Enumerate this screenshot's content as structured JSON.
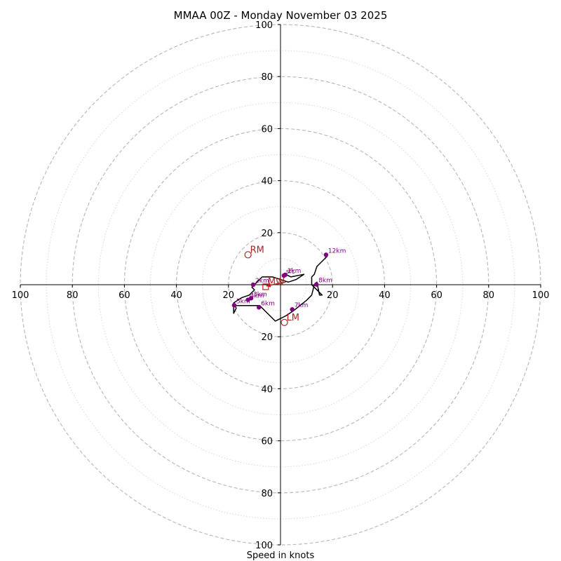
{
  "chart_data": {
    "type": "hodograph",
    "title": "MMAA 00Z - Monday November 03 2025",
    "xlabel": "Speed in knots",
    "max_speed": 100,
    "ring_step": 20,
    "tick_labels": [
      "20",
      "40",
      "60",
      "80",
      "100"
    ],
    "hodograph_trace": [
      [
        2,
        4
      ],
      [
        4,
        3
      ],
      [
        9,
        4
      ],
      [
        6,
        2
      ],
      [
        3,
        1
      ],
      [
        0,
        2
      ],
      [
        -3,
        3
      ],
      [
        -5,
        3
      ],
      [
        -7,
        3
      ],
      [
        -10,
        0
      ],
      [
        -11,
        -1
      ],
      [
        -10,
        -2
      ],
      [
        -12,
        -4
      ],
      [
        -15,
        -5
      ],
      [
        -18,
        -7
      ],
      [
        -17,
        -9
      ],
      [
        -18,
        -11
      ],
      [
        -18,
        -8
      ],
      [
        -15,
        -8
      ],
      [
        -10,
        -8
      ],
      [
        -8,
        -8
      ],
      [
        -6,
        -10
      ],
      [
        -2,
        -14
      ],
      [
        2,
        -12
      ],
      [
        5,
        -10
      ],
      [
        10,
        -6
      ],
      [
        12,
        -4
      ],
      [
        13,
        0
      ],
      [
        14,
        1
      ],
      [
        15,
        -4
      ],
      [
        16,
        -4
      ],
      [
        13,
        -1
      ],
      [
        12,
        0
      ],
      [
        12,
        3
      ],
      [
        13,
        4
      ],
      [
        14,
        7
      ],
      [
        17,
        10
      ],
      [
        18,
        11
      ]
    ],
    "height_markers": [
      {
        "label": "sfc",
        "u": 1.3,
        "v": 3.5
      },
      {
        "label": "1km",
        "u": 1.8,
        "v": 3.8
      },
      {
        "label": "2km",
        "u": -10.5,
        "v": 0
      },
      {
        "label": "3km",
        "u": -11.3,
        "v": -5.2
      },
      {
        "label": "4km",
        "u": -12.5,
        "v": -5.8
      },
      {
        "label": "5km",
        "u": -17.8,
        "v": -7.9
      },
      {
        "label": "6km",
        "u": -8.3,
        "v": -8.7
      },
      {
        "label": "7km",
        "u": 4.5,
        "v": -9.5
      },
      {
        "label": "8km",
        "u": 13.8,
        "v": 0.1
      },
      {
        "label": "12km",
        "u": 17.5,
        "v": 11.5
      }
    ],
    "storm_motion": [
      {
        "label": "RM",
        "u": -12.5,
        "v": 11.5
      },
      {
        "label": "LM",
        "u": 1.5,
        "v": -14.5
      },
      {
        "label": "MW",
        "u": -5.7,
        "v": -0.8
      }
    ],
    "shear_vector": {
      "from": [
        2,
        1
      ],
      "to": [
        -5.5,
        -0.5
      ]
    },
    "colors": {
      "trace": "#000000",
      "markers": "#800080",
      "storm_motion": "#b22222",
      "rings": "#bbbbbb",
      "axes": "#000000"
    }
  }
}
